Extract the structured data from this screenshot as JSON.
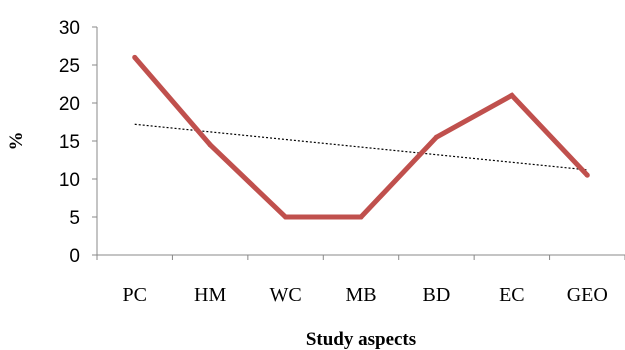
{
  "chart_data": {
    "type": "line",
    "categories": [
      "PC",
      "HM",
      "WC",
      "MB",
      "BD",
      "EC",
      "GEO"
    ],
    "series": [
      {
        "values": [
          26,
          14.5,
          5,
          5,
          15.5,
          21,
          10.5
        ],
        "color": "#c0504d"
      }
    ],
    "trendline": {
      "type": "linear",
      "start": 17.2,
      "end": 11.2,
      "color": "#000000",
      "style": "dotted"
    },
    "xlabel": "Study aspects",
    "ylabel": "%",
    "ylim": [
      0,
      30
    ],
    "yticks": [
      "0",
      "5",
      "10",
      "15",
      "20",
      "25",
      "30"
    ],
    "grid": false
  }
}
